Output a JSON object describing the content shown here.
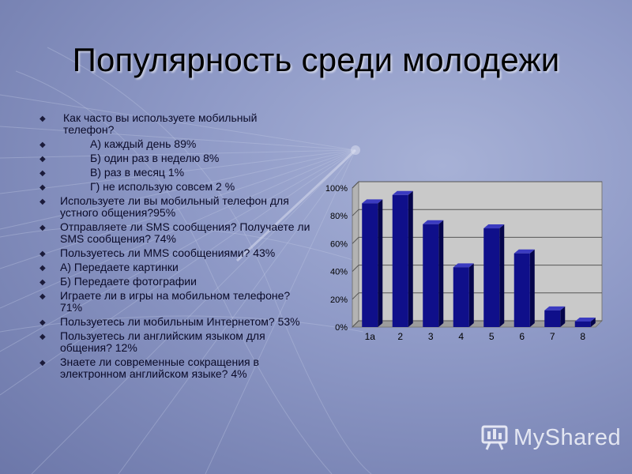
{
  "slide": {
    "title": "Популярность среди молодежи",
    "bullets": [
      {
        "text": "Как часто вы используете мобильный    телефон?",
        "indent": 2
      },
      {
        "text": "А)  каждый день 89%",
        "indent": 1
      },
      {
        "text": "Б) один раз в неделю 8%",
        "indent": 1
      },
      {
        "text": "В) раз в месяц 1%",
        "indent": 1
      },
      {
        "text": "Г) не использую совсем 2 %",
        "indent": 1
      },
      {
        "text": "Используете ли вы мобильный телефон для устного общения?95%",
        "indent": 0
      },
      {
        "text": "Отправляете ли  SMS сообщения? Получаете ли SMS сообщения? 74%",
        "indent": 0
      },
      {
        "text": "Пользуетесь ли MMS сообщениями? 43%",
        "indent": 0
      },
      {
        "text": "А)  Передаете  картинки",
        "indent": 0
      },
      {
        "text": "Б) Передаете фотографии",
        "indent": 0
      },
      {
        "text": "Играете ли   в игры на мобильном телефоне? 71%",
        "indent": 0
      },
      {
        "text": "Пользуетесь ли мобильным Интернетом? 53%",
        "indent": 0
      },
      {
        "text": "Пользуетесь ли английским языком для общения? 12%",
        "indent": 0
      },
      {
        "text": "Знаете ли современные сокращения в электронном английском языке? 4%",
        "indent": 0
      }
    ],
    "watermark": "MyShared"
  },
  "chart_data": {
    "type": "bar",
    "categories": [
      "1a",
      "2",
      "3",
      "4",
      "5",
      "6",
      "7",
      "8"
    ],
    "values": [
      89,
      95,
      74,
      43,
      71,
      53,
      12,
      4
    ],
    "ylim": [
      0,
      100
    ],
    "yticks": [
      "0%",
      "20%",
      "40%",
      "60%",
      "80%",
      "100%"
    ],
    "grid": true,
    "legend": "none",
    "bar_color": "#0f0f8a",
    "plot_bg": "#c9c9c9"
  }
}
